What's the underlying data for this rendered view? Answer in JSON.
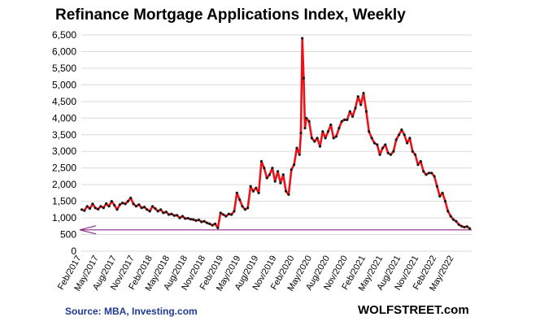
{
  "title": "Refinance Mortgage Applications Index, Weekly",
  "source": "Source: MBA, Investing.com",
  "brand": "WOLFSTREET.com",
  "colors": {
    "line": "#e8141a",
    "dots": "#1a1a1a",
    "grid": "#d9d9d9",
    "reference_line": "#8b2d8b"
  },
  "chart_data": {
    "type": "line",
    "title": "Refinance Mortgage Applications Index, Weekly",
    "xlabel": "",
    "ylabel": "",
    "ylim": [
      0,
      6500
    ],
    "yticks": [
      0,
      500,
      1000,
      1500,
      2000,
      2500,
      3000,
      3500,
      4000,
      4500,
      5000,
      5500,
      6000,
      6500
    ],
    "ytick_labels": [
      "0",
      "500",
      "1,000",
      "1,500",
      "2,000",
      "2,500",
      "3,000",
      "3,500",
      "4,000",
      "4,500",
      "5,000",
      "5,500",
      "6,000",
      "6,500"
    ],
    "xtick_labels": [
      "Feb/2017",
      "May/2017",
      "Aug/2017",
      "Nov/2017",
      "Feb/2018",
      "May/2018",
      "Aug/2018",
      "Nov/2018",
      "Feb/2019",
      "May/2019",
      "Aug/2019",
      "Nov/2019",
      "Feb/2020",
      "May/2020",
      "Aug/2020",
      "Nov/2020",
      "Feb/2021",
      "May/2021",
      "Aug/2021",
      "Nov/2021",
      "Feb/2022",
      "May/2022"
    ],
    "grid": true,
    "reference_line": {
      "y": 640,
      "marker": "arrow-left"
    },
    "series": [
      {
        "x": [
          "2017-02-03",
          "2017-02-17",
          "2017-03-03",
          "2017-03-17",
          "2017-03-31",
          "2017-04-14",
          "2017-04-28",
          "2017-05-12",
          "2017-05-26",
          "2017-06-09",
          "2017-06-23",
          "2017-07-07",
          "2017-07-21",
          "2017-08-04",
          "2017-08-18",
          "2017-09-01",
          "2017-09-15",
          "2017-09-29",
          "2017-10-13",
          "2017-10-27",
          "2017-11-10",
          "2017-11-24",
          "2017-12-08",
          "2017-12-22",
          "2018-01-05",
          "2018-01-19",
          "2018-02-02",
          "2018-02-16",
          "2018-03-02",
          "2018-03-16",
          "2018-03-30",
          "2018-04-13",
          "2018-04-27",
          "2018-05-11",
          "2018-05-25",
          "2018-06-08",
          "2018-06-22",
          "2018-07-06",
          "2018-07-20",
          "2018-08-03",
          "2018-08-17",
          "2018-08-31",
          "2018-09-14",
          "2018-09-28",
          "2018-10-12",
          "2018-10-26",
          "2018-11-09",
          "2018-11-23",
          "2018-12-07",
          "2018-12-21",
          "2019-01-04",
          "2019-01-18",
          "2019-02-01",
          "2019-02-15",
          "2019-03-01",
          "2019-03-15",
          "2019-03-29",
          "2019-04-12",
          "2019-04-26",
          "2019-05-10",
          "2019-05-24",
          "2019-06-07",
          "2019-06-21",
          "2019-07-05",
          "2019-07-19",
          "2019-08-02",
          "2019-08-16",
          "2019-08-30",
          "2019-09-13",
          "2019-09-27",
          "2019-10-11",
          "2019-10-25",
          "2019-11-08",
          "2019-11-22",
          "2019-12-06",
          "2019-12-20",
          "2020-01-03",
          "2020-01-17",
          "2020-01-31",
          "2020-02-14",
          "2020-02-28",
          "2020-03-06",
          "2020-03-13",
          "2020-03-20",
          "2020-03-27",
          "2020-04-03",
          "2020-04-17",
          "2020-05-01",
          "2020-05-15",
          "2020-05-29",
          "2020-06-12",
          "2020-06-26",
          "2020-07-10",
          "2020-07-24",
          "2020-08-07",
          "2020-08-21",
          "2020-09-04",
          "2020-09-18",
          "2020-10-02",
          "2020-10-16",
          "2020-10-30",
          "2020-11-13",
          "2020-11-27",
          "2020-12-11",
          "2020-12-25",
          "2021-01-08",
          "2021-01-22",
          "2021-02-05",
          "2021-02-19",
          "2021-03-05",
          "2021-03-19",
          "2021-04-02",
          "2021-04-16",
          "2021-04-30",
          "2021-05-14",
          "2021-05-28",
          "2021-06-11",
          "2021-06-25",
          "2021-07-09",
          "2021-07-23",
          "2021-08-06",
          "2021-08-20",
          "2021-09-03",
          "2021-09-17",
          "2021-10-01",
          "2021-10-15",
          "2021-10-29",
          "2021-11-12",
          "2021-11-26",
          "2021-12-10",
          "2021-12-24",
          "2022-01-07",
          "2022-01-21",
          "2022-02-04",
          "2022-02-18",
          "2022-03-04",
          "2022-03-18",
          "2022-04-01",
          "2022-04-15",
          "2022-04-29",
          "2022-05-13",
          "2022-05-27",
          "2022-06-10",
          "2022-06-24",
          "2022-07-08",
          "2022-07-22"
        ],
        "y": [
          1250,
          1220,
          1350,
          1280,
          1420,
          1300,
          1260,
          1350,
          1300,
          1430,
          1350,
          1500,
          1380,
          1250,
          1400,
          1450,
          1420,
          1500,
          1600,
          1420,
          1350,
          1400,
          1300,
          1330,
          1250,
          1200,
          1350,
          1280,
          1200,
          1250,
          1150,
          1180,
          1100,
          1120,
          1070,
          1080,
          1000,
          1050,
          980,
          990,
          960,
          950,
          920,
          940,
          880,
          900,
          850,
          820,
          780,
          820,
          700,
          1150,
          1100,
          1050,
          1120,
          1100,
          1200,
          1750,
          1550,
          1350,
          1250,
          1300,
          1950,
          1800,
          1900,
          1750,
          2700,
          2500,
          2200,
          2300,
          2500,
          2100,
          2400,
          2050,
          2300,
          1800,
          1700,
          2450,
          2600,
          3100,
          2900,
          3550,
          6400,
          5200,
          3700,
          4000,
          3900,
          3400,
          3300,
          3400,
          3150,
          3600,
          3400,
          3600,
          3800,
          3400,
          3450,
          3700,
          3900,
          3950,
          3950,
          4200,
          4050,
          4300,
          4650,
          4400,
          4750,
          4200,
          3600,
          3400,
          3250,
          3200,
          2900,
          3100,
          3200,
          2950,
          2900,
          3000,
          3350,
          3500,
          3650,
          3500,
          3250,
          3400,
          3000,
          2900,
          2600,
          2700,
          2400,
          2300,
          2350,
          2350,
          2250,
          1950,
          1650,
          1750,
          1500,
          1200,
          1050,
          950,
          900,
          800,
          750,
          720,
          740,
          680
        ]
      }
    ]
  }
}
